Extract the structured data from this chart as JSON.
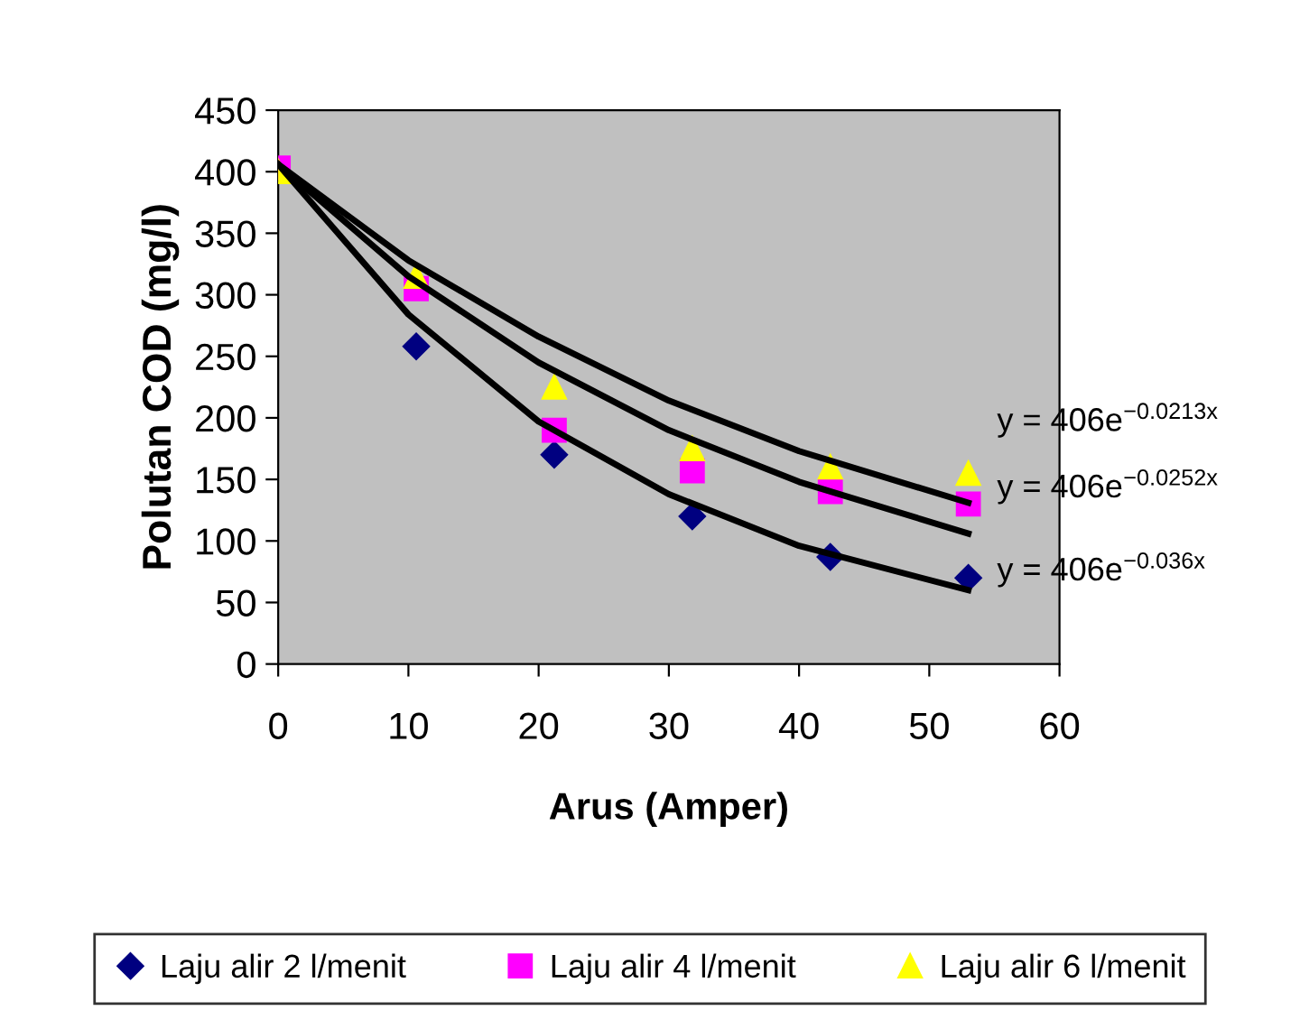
{
  "chart_data": {
    "type": "scatter",
    "xlabel": "Arus (Amper)",
    "ylabel": "Polutan COD (mg/l)",
    "x": [
      0,
      10.6,
      21.2,
      31.8,
      42.4,
      53
    ],
    "series": [
      {
        "name": "Laju alir 2 l/menit",
        "color": "#000080",
        "marker": "diamond",
        "values": [
          null,
          258,
          170,
          120,
          87,
          70
        ]
      },
      {
        "name": "Laju alir 4 l/menit",
        "color": "#ff00ff",
        "marker": "square",
        "values": [
          403,
          305,
          190,
          157,
          140,
          130
        ]
      },
      {
        "name": "Laju alir 6 l/menit",
        "color": "#ffff00",
        "marker": "triangle",
        "values": [
          400,
          315,
          225,
          175,
          160,
          155
        ]
      },
      {
        "type": "line",
        "color": "#000000",
        "x": [
          0,
          10,
          20,
          30,
          40,
          53
        ],
        "values": [
          406,
          328,
          266,
          214,
          173,
          131
        ]
      },
      {
        "type": "line",
        "color": "#000000",
        "x": [
          0,
          10,
          20,
          30,
          40,
          53
        ],
        "values": [
          406,
          315,
          245,
          190,
          148,
          106
        ]
      },
      {
        "type": "line",
        "color": "#000000",
        "x": [
          0,
          10,
          20,
          30,
          40,
          53
        ],
        "values": [
          406,
          284,
          197,
          138,
          96,
          60
        ]
      }
    ],
    "annotations": [
      "y = 406e$^{−0.0213x}$",
      "y = 406e$^{−0.0252x}$",
      "y = 406e$^{−0.036x}$"
    ],
    "xlim": [
      0,
      60
    ],
    "xticks": [
      0,
      10,
      20,
      30,
      40,
      50,
      60
    ],
    "ylim": [
      0,
      450
    ],
    "yticks": [
      0,
      50,
      100,
      150,
      200,
      250,
      300,
      350,
      400,
      450
    ],
    "grid": false,
    "legend": "bottom"
  }
}
